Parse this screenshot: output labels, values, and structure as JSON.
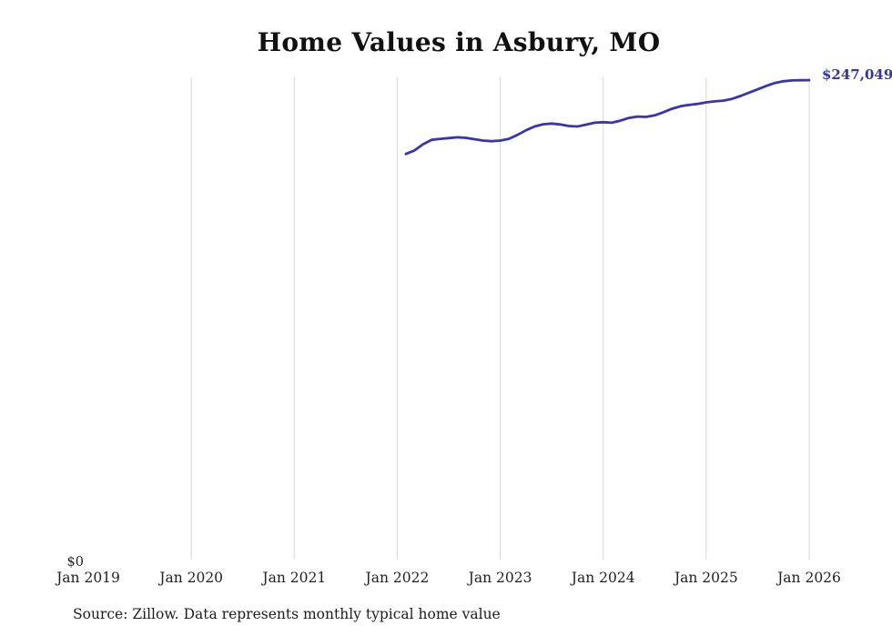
{
  "chart": {
    "title": "Home Values in Asbury, MO",
    "source_note": "Source: Zillow. Data represents monthly typical home value",
    "end_label": "$247,049",
    "y_zero_label": "$0",
    "line_color": "#3a35ad",
    "grid_color": "#d8d8d8",
    "tick_label_color": "#222222",
    "end_label_color": "#3333aa"
  },
  "chart_data": {
    "type": "line",
    "title": "Home Values in Asbury, MO",
    "xlabel": "",
    "ylabel": "",
    "ylim": [
      0,
      248500
    ],
    "grid": "vertical-only",
    "legend": "none",
    "x_tick_labels": [
      "Jan 2019",
      "Jan 2020",
      "Jan 2021",
      "Jan 2022",
      "Jan 2023",
      "Jan 2024",
      "Jan 2025",
      "Jan 2026"
    ],
    "end_value_label": "$247,049",
    "series": [
      {
        "name": "Typical home value ($)",
        "x": [
          "2022-02",
          "2022-03",
          "2022-04",
          "2022-05",
          "2022-06",
          "2022-07",
          "2022-08",
          "2022-09",
          "2022-10",
          "2022-11",
          "2022-12",
          "2023-01",
          "2023-02",
          "2023-03",
          "2023-04",
          "2023-05",
          "2023-06",
          "2023-07",
          "2023-08",
          "2023-09",
          "2023-10",
          "2023-11",
          "2023-12",
          "2024-01",
          "2024-02",
          "2024-03",
          "2024-04",
          "2024-05",
          "2024-06",
          "2024-07",
          "2024-08",
          "2024-09",
          "2024-10",
          "2024-11",
          "2024-12",
          "2025-01",
          "2025-02",
          "2025-03",
          "2025-04",
          "2025-05",
          "2025-06",
          "2025-07",
          "2025-08",
          "2025-09",
          "2025-10",
          "2025-11",
          "2025-12",
          "2026-01"
        ],
        "values": [
          209000,
          210800,
          214000,
          216300,
          216800,
          217200,
          217600,
          217300,
          216600,
          215900,
          215600,
          215900,
          216800,
          218800,
          221200,
          223200,
          224300,
          224700,
          224200,
          223400,
          223200,
          224100,
          225100,
          225400,
          225100,
          226200,
          227600,
          228300,
          228100,
          228900,
          230500,
          232300,
          233600,
          234300,
          234800,
          235600,
          236100,
          236500,
          237400,
          238900,
          240600,
          242300,
          244100,
          245600,
          246500,
          246900,
          247000,
          247049
        ]
      }
    ]
  }
}
